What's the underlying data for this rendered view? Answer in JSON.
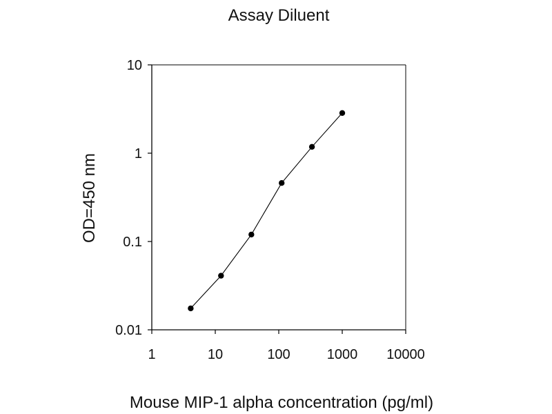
{
  "chart_data": {
    "type": "line",
    "title": "Assay Diluent",
    "xlabel": "Mouse MIP-1 alpha concentration (pg/ml)",
    "ylabel": "OD=450 nm",
    "x_scale": "log",
    "y_scale": "log",
    "xlim": [
      1,
      10000
    ],
    "ylim": [
      0.01,
      10
    ],
    "x_ticks": [
      "1",
      "10",
      "100",
      "1000",
      "10000"
    ],
    "y_ticks": [
      "0.01",
      "0.1",
      "1",
      "10"
    ],
    "grid": false,
    "series": [
      {
        "x": [
          4.1,
          12.3,
          37,
          111,
          333,
          1000
        ],
        "y": [
          0.0175,
          0.041,
          0.12,
          0.46,
          1.18,
          2.85
        ]
      }
    ],
    "marker_color": "#000000",
    "line_color": "#000000"
  }
}
